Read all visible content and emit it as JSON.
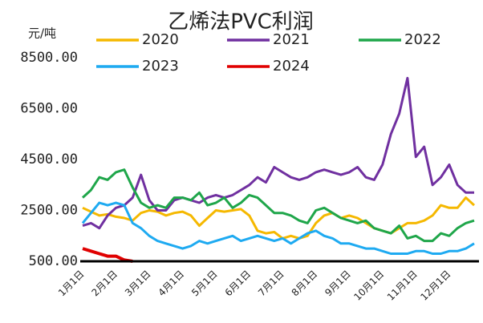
{
  "chart_data": {
    "type": "line",
    "title": "乙烯法PVC利润",
    "y_label": "元/吨",
    "categories": [
      "1月1日",
      null,
      null,
      null,
      "2月1日",
      null,
      null,
      null,
      "3月1日",
      null,
      null,
      null,
      "4月1日",
      null,
      null,
      null,
      "5月1日",
      null,
      null,
      null,
      "6月1日",
      null,
      null,
      null,
      "7月1日",
      null,
      null,
      null,
      "8月1日",
      null,
      null,
      null,
      "9月1日",
      null,
      null,
      null,
      "10月1日",
      null,
      null,
      null,
      "11月1日",
      null,
      null,
      null,
      "12月1日",
      null,
      null,
      null
    ],
    "ylim": [
      500,
      8500
    ],
    "yticks": [
      {
        "value": 500,
        "label": "500.00"
      },
      {
        "value": 2500,
        "label": "2500.00"
      },
      {
        "value": 4500,
        "label": "4500.00"
      },
      {
        "value": 6500,
        "label": "6500.00"
      },
      {
        "value": 8500,
        "label": "8500.00"
      }
    ],
    "series": [
      {
        "name": "2020",
        "color": "#f5b800",
        "values": [
          2600,
          2450,
          2300,
          2350,
          2250,
          2200,
          2100,
          2400,
          2500,
          2450,
          2300,
          2400,
          2450,
          2300,
          1900,
          2200,
          2500,
          2450,
          2500,
          2550,
          2300,
          1700,
          1600,
          1650,
          1400,
          1500,
          1400,
          1500,
          2000,
          2300,
          2400,
          2200,
          2300,
          2200,
          2000,
          1800,
          1700,
          1600,
          1800,
          2000,
          2000,
          2100,
          2300,
          2700,
          2600,
          2600,
          3000,
          2700
        ]
      },
      {
        "name": "2021",
        "color": "#7030a0",
        "values": [
          1900,
          2000,
          1800,
          2300,
          2600,
          2700,
          3000,
          3900,
          2900,
          2500,
          2500,
          2900,
          3000,
          2900,
          2800,
          3000,
          3100,
          3000,
          3100,
          3300,
          3500,
          3800,
          3600,
          4200,
          4000,
          3800,
          3700,
          3800,
          4000,
          4100,
          4000,
          3900,
          4000,
          4200,
          3800,
          3700,
          4300,
          5500,
          6300,
          7700,
          4600,
          5000,
          3500,
          3800,
          4300,
          3500,
          3200,
          3200
        ]
      },
      {
        "name": "2022",
        "color": "#1fa64a",
        "values": [
          3000,
          3300,
          3800,
          3700,
          4000,
          4100,
          3400,
          2800,
          2600,
          2700,
          2600,
          3000,
          3000,
          2900,
          3200,
          2700,
          2800,
          3000,
          2600,
          2800,
          3100,
          3000,
          2700,
          2400,
          2400,
          2300,
          2100,
          2000,
          2500,
          2600,
          2400,
          2200,
          2100,
          2000,
          2100,
          1800,
          1700,
          1600,
          1900,
          1400,
          1500,
          1300,
          1300,
          1600,
          1500,
          1800,
          2000,
          2100
        ]
      },
      {
        "name": "2023",
        "color": "#1eaaf1",
        "values": [
          2000,
          2400,
          2800,
          2700,
          2800,
          2700,
          2000,
          1800,
          1500,
          1300,
          1200,
          1100,
          1000,
          1100,
          1300,
          1200,
          1300,
          1400,
          1500,
          1300,
          1400,
          1500,
          1400,
          1300,
          1400,
          1200,
          1400,
          1600,
          1700,
          1500,
          1400,
          1200,
          1200,
          1100,
          1000,
          1000,
          900,
          800,
          800,
          800,
          900,
          900,
          800,
          800,
          900,
          900,
          1000,
          1200
        ]
      },
      {
        "name": "2024",
        "color": "#e00000",
        "values": [
          1000,
          900,
          800,
          700,
          700,
          550,
          500,
          null,
          null,
          null,
          null,
          null,
          null,
          null,
          null,
          null,
          null,
          null,
          null,
          null,
          null,
          null,
          null,
          null,
          null,
          null,
          null,
          null,
          null,
          null,
          null,
          null,
          null,
          null,
          null,
          null,
          null,
          null,
          null,
          null,
          null,
          null,
          null,
          null,
          null,
          null,
          null,
          null
        ]
      }
    ]
  }
}
